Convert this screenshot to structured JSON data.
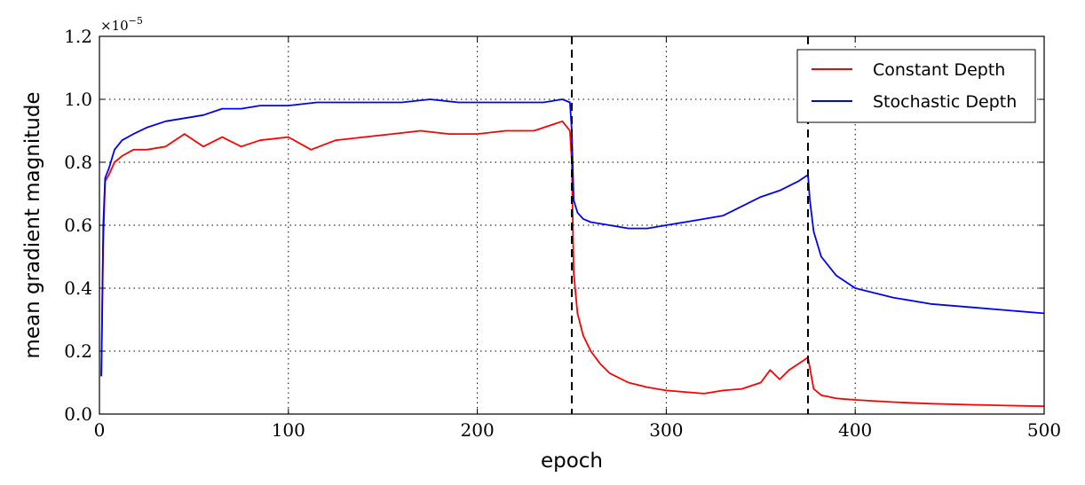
{
  "chart_data": {
    "type": "line",
    "title": "",
    "xlabel": "epoch",
    "ylabel": "mean gradient magnitude",
    "xlim": [
      0,
      500
    ],
    "ylim": [
      0.0,
      1.2
    ],
    "y_multiplier": "×10⁻⁵",
    "y_multiplier_base": "×10",
    "y_multiplier_exp": "−5",
    "x_ticks": [
      0,
      100,
      200,
      300,
      400,
      500
    ],
    "x_tick_labels": [
      "0",
      "100",
      "200",
      "300",
      "400",
      "500"
    ],
    "y_ticks": [
      0.0,
      0.2,
      0.4,
      0.6,
      0.8,
      1.0,
      1.2
    ],
    "y_tick_labels": [
      "0.0",
      "0.2",
      "0.4",
      "0.6",
      "0.8",
      "1.0",
      "1.2"
    ],
    "grid": true,
    "legend_position": "top-right",
    "vlines": [
      250,
      375
    ],
    "series": [
      {
        "name": "Constant Depth",
        "color": "#ff0000",
        "x": [
          1,
          2,
          3,
          5,
          8,
          12,
          18,
          25,
          35,
          45,
          55,
          65,
          75,
          85,
          100,
          112,
          125,
          140,
          155,
          170,
          185,
          200,
          215,
          230,
          240,
          245,
          249,
          250,
          251,
          253,
          256,
          260,
          265,
          270,
          280,
          290,
          300,
          310,
          320,
          330,
          340,
          350,
          355,
          360,
          365,
          370,
          375,
          378,
          382,
          390,
          400,
          420,
          440,
          460,
          480,
          500
        ],
        "y": [
          0.12,
          0.55,
          0.74,
          0.76,
          0.8,
          0.82,
          0.84,
          0.84,
          0.85,
          0.89,
          0.85,
          0.88,
          0.85,
          0.87,
          0.88,
          0.84,
          0.87,
          0.88,
          0.89,
          0.9,
          0.89,
          0.89,
          0.9,
          0.9,
          0.92,
          0.93,
          0.9,
          0.8,
          0.45,
          0.32,
          0.25,
          0.2,
          0.16,
          0.13,
          0.1,
          0.085,
          0.075,
          0.07,
          0.065,
          0.075,
          0.08,
          0.1,
          0.14,
          0.11,
          0.14,
          0.16,
          0.18,
          0.08,
          0.06,
          0.05,
          0.045,
          0.038,
          0.033,
          0.03,
          0.027,
          0.025
        ]
      },
      {
        "name": "Stochastic Depth",
        "color": "#0000ff",
        "x": [
          1,
          2,
          3,
          5,
          8,
          12,
          18,
          25,
          35,
          45,
          55,
          65,
          75,
          85,
          100,
          115,
          130,
          145,
          160,
          175,
          190,
          205,
          220,
          235,
          245,
          249,
          250,
          251,
          253,
          256,
          260,
          270,
          280,
          290,
          300,
          310,
          320,
          330,
          340,
          350,
          360,
          370,
          375,
          376,
          378,
          382,
          390,
          400,
          420,
          440,
          460,
          480,
          500
        ],
        "y": [
          0.12,
          0.6,
          0.75,
          0.78,
          0.84,
          0.87,
          0.89,
          0.91,
          0.93,
          0.94,
          0.95,
          0.97,
          0.97,
          0.98,
          0.98,
          0.99,
          0.99,
          0.99,
          0.99,
          1.0,
          0.99,
          0.99,
          0.99,
          0.99,
          1.0,
          0.99,
          0.9,
          0.68,
          0.64,
          0.62,
          0.61,
          0.6,
          0.59,
          0.59,
          0.6,
          0.61,
          0.62,
          0.63,
          0.66,
          0.69,
          0.71,
          0.74,
          0.76,
          0.68,
          0.58,
          0.5,
          0.44,
          0.4,
          0.37,
          0.35,
          0.34,
          0.33,
          0.32
        ]
      }
    ]
  }
}
